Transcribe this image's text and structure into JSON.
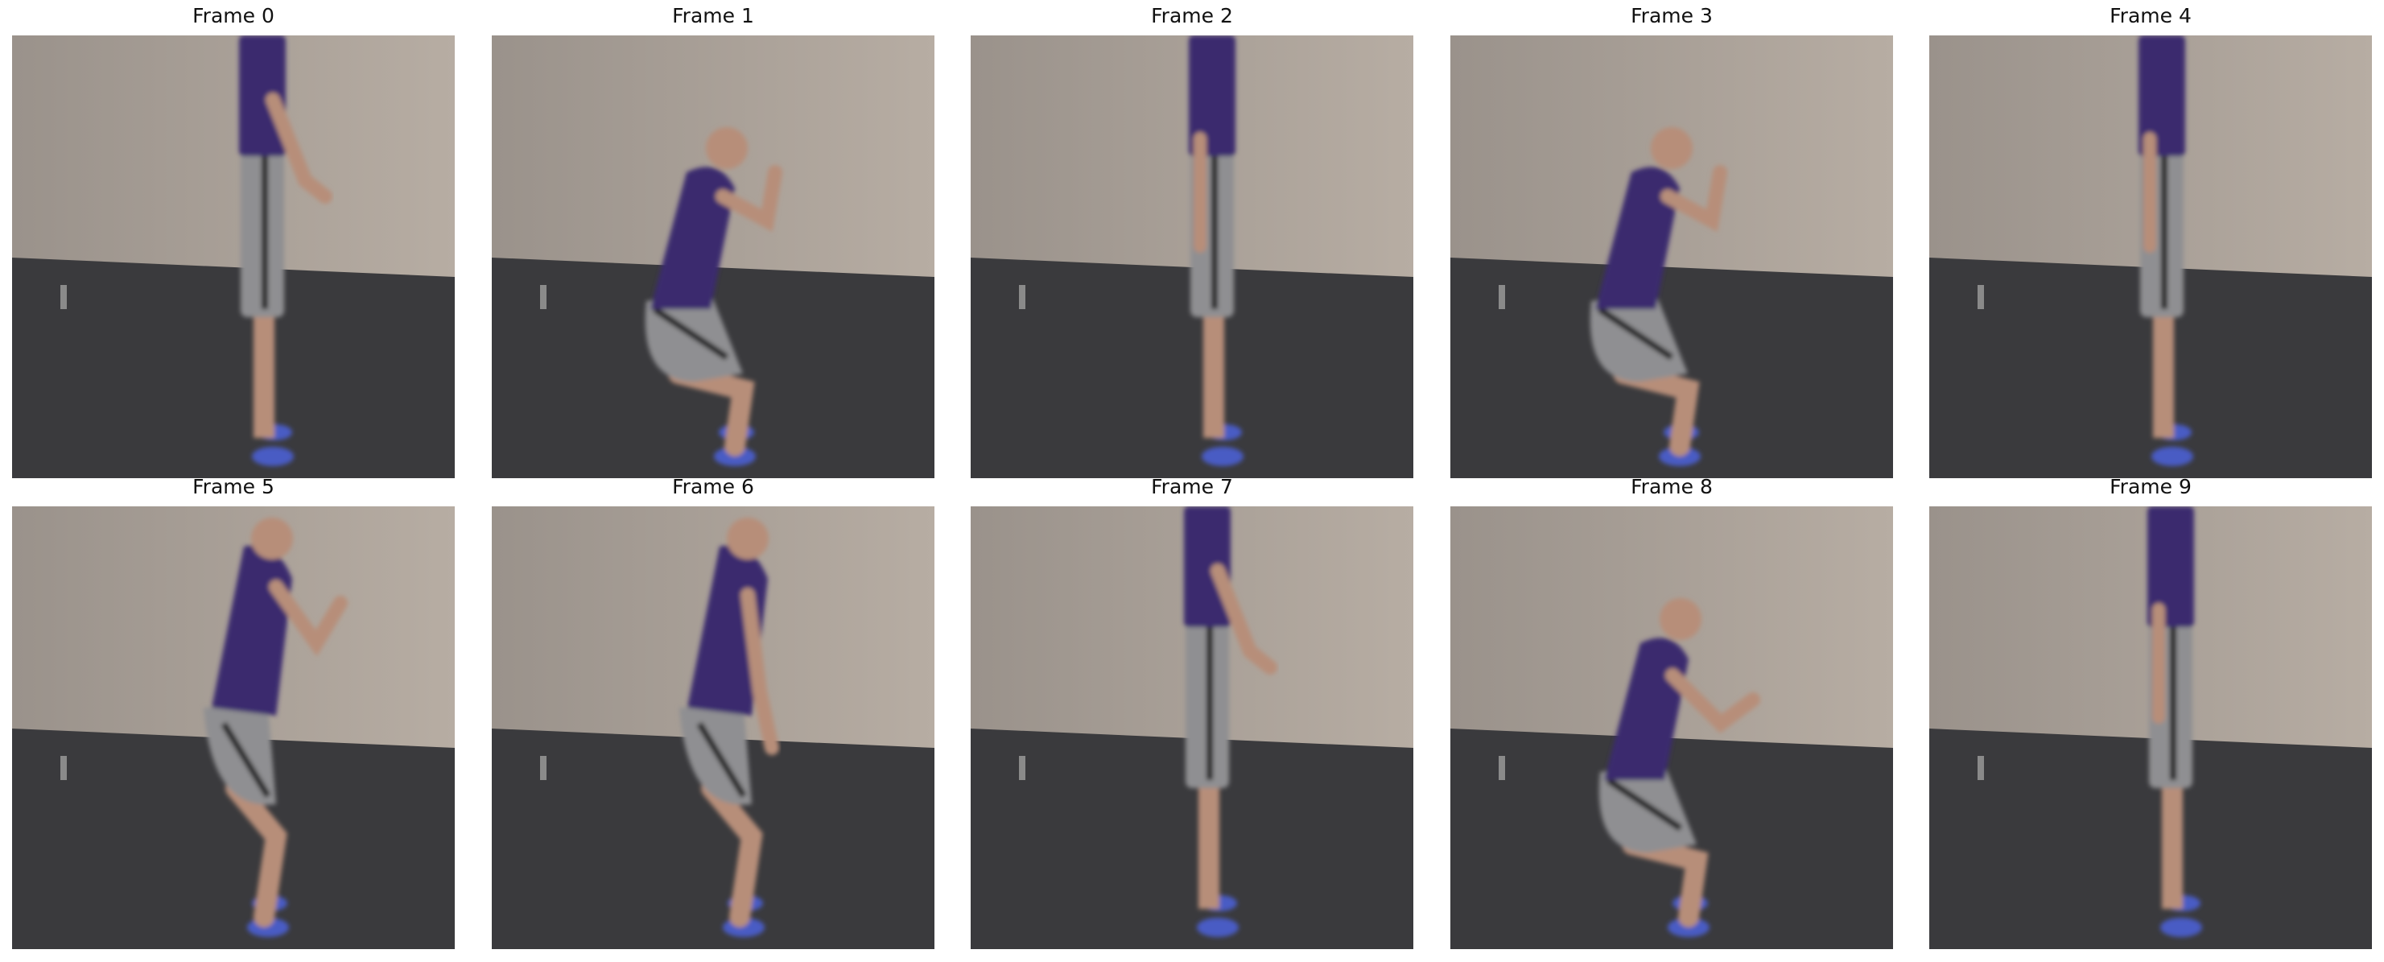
{
  "frames": [
    {
      "title": "Frame 0",
      "pose": "stand-arms",
      "x": 0.57
    },
    {
      "title": "Frame 1",
      "pose": "squat",
      "x": 0.53
    },
    {
      "title": "Frame 2",
      "pose": "stand",
      "x": 0.55
    },
    {
      "title": "Frame 3",
      "pose": "squat",
      "x": 0.5
    },
    {
      "title": "Frame 4",
      "pose": "stand",
      "x": 0.53
    },
    {
      "title": "Frame 5",
      "pose": "half-squat",
      "x": 0.56
    },
    {
      "title": "Frame 6",
      "pose": "half-squat-low-arms",
      "x": 0.55
    },
    {
      "title": "Frame 7",
      "pose": "stand-arms",
      "x": 0.54
    },
    {
      "title": "Frame 8",
      "pose": "squat-low-arms",
      "x": 0.52
    },
    {
      "title": "Frame 9",
      "pose": "stand",
      "x": 0.55
    }
  ],
  "colors": {
    "wall": "#a89f96",
    "floor": "#3a3a3d",
    "shirt": "#3b2a6e",
    "shorts": "#8f8f92",
    "skin": "#b78e79",
    "shoe": "#4a5cc4"
  }
}
